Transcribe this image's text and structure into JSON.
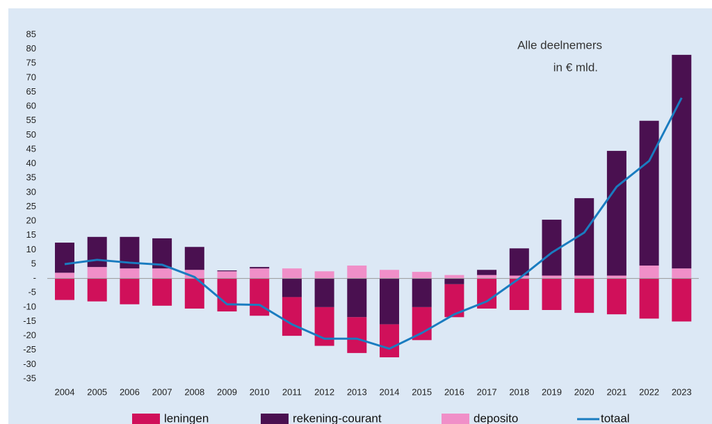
{
  "chart_data": {
    "type": "bar",
    "annotations": [
      "Alle deelnemers",
      "in € mld."
    ],
    "categories": [
      "2004",
      "2005",
      "2006",
      "2007",
      "2008",
      "2009",
      "2010",
      "2011",
      "2012",
      "2013",
      "2014",
      "2015",
      "2016",
      "2017",
      "2018",
      "2019",
      "2020",
      "2021",
      "2022",
      "2023"
    ],
    "series": [
      {
        "name": "leningen",
        "color": "#d0105a",
        "values": [
          -7.5,
          -8,
          -9,
          -9.5,
          -10.5,
          -11.5,
          -13,
          -13.5,
          -13.5,
          -12.5,
          -11.5,
          -11.5,
          -11.5,
          -10.5,
          -11,
          -11,
          -12,
          -12.5,
          -14,
          -15
        ]
      },
      {
        "name": "rekening-courant",
        "color": "#4a1050",
        "values": [
          10.5,
          10.5,
          11,
          10.5,
          8,
          0.3,
          0.5,
          -6.5,
          -10,
          -13.5,
          -16,
          -10,
          -2,
          1.8,
          9.5,
          19.5,
          27,
          43.5,
          50.5,
          74.5
        ]
      },
      {
        "name": "deposito",
        "color": "#f08fc8",
        "values": [
          2,
          4,
          3.5,
          3.5,
          3,
          2.5,
          3.5,
          3.5,
          2.5,
          4.5,
          3,
          2.3,
          1.2,
          1.2,
          1,
          1,
          1,
          1,
          4.5,
          3.5
        ]
      },
      {
        "name": "totaal",
        "type": "line",
        "color": "#1a7cc0",
        "values": [
          5,
          6.5,
          5.5,
          4.8,
          0.5,
          -9,
          -9.2,
          -16,
          -21,
          -21,
          -24.5,
          -19,
          -12.5,
          -8,
          0,
          9,
          16,
          32,
          41,
          63
        ]
      }
    ],
    "ylim": [
      -35,
      85
    ],
    "yticks": [
      -35,
      -30,
      -25,
      -20,
      -15,
      -10,
      -5,
      {
        "value": 0,
        "label": "-"
      },
      5,
      10,
      15,
      20,
      25,
      30,
      35,
      40,
      45,
      50,
      55,
      60,
      65,
      70,
      75,
      80,
      85
    ],
    "legend": "bottom"
  }
}
